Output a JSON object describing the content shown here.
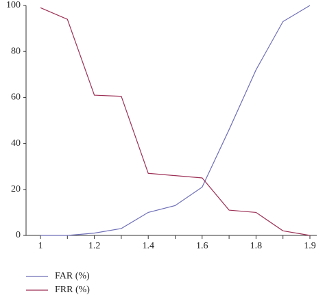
{
  "chart_data": {
    "type": "line",
    "categories": [
      "1",
      null,
      "1.2",
      null,
      "1.4",
      null,
      "1.6",
      null,
      "1.8",
      null,
      "1.9"
    ],
    "series": [
      {
        "name": "FAR (%)",
        "color": "#6e6eb8",
        "values": [
          0,
          0,
          1,
          3,
          10,
          13,
          21,
          46,
          72,
          93,
          100
        ]
      },
      {
        "name": "FRR (%)",
        "color": "#9c2f55",
        "values": [
          99,
          94,
          61,
          60.5,
          27,
          26,
          25,
          11,
          10,
          2,
          0
        ]
      }
    ],
    "ylim": [
      0,
      100
    ],
    "yticks": [
      0,
      20,
      40,
      60,
      80,
      100
    ],
    "legend": "bottom-left"
  }
}
